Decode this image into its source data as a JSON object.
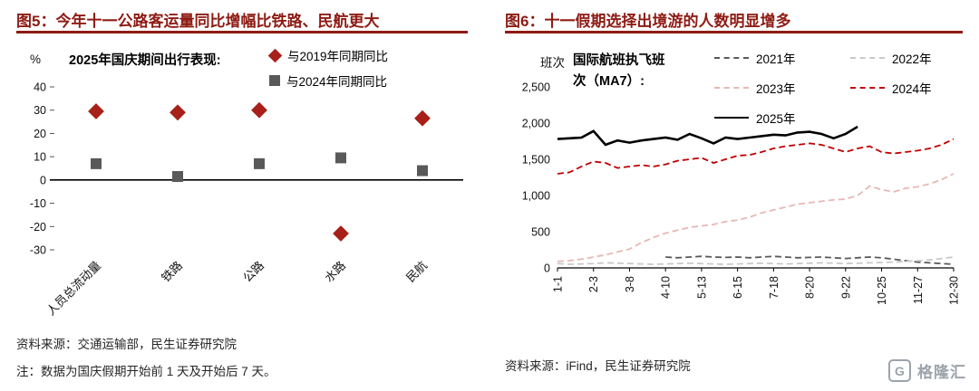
{
  "figure5": {
    "title": "图5：今年十一公路客运量同比增幅比铁路、民航更大",
    "chart_heading": "2025年国庆期间出行表现:",
    "ylabel": "%",
    "source": "资料来源：交通运输部，民生证券研究院",
    "note": "注：数据为国庆假期开始前 1 天及开始后 7 天。"
  },
  "figure6": {
    "title": "图6：十一假期选择出境游的人数明显增多",
    "chart_heading": "国际航班执飞班次（MA7）:",
    "ylabel": "班次",
    "source": "资料来源：iFind，民生证券研究院"
  },
  "accent_color": "#8E1B14",
  "chart_data": [
    {
      "id": "figure5",
      "type": "scatter",
      "title": "2025年国庆期间出行表现:",
      "ylabel": "%",
      "categories": [
        "人员总流动量",
        "铁路",
        "公路",
        "水路",
        "民航"
      ],
      "series": [
        {
          "name": "与2019年同期同比",
          "marker": "diamond",
          "color": "#A8201A",
          "values": [
            29.5,
            29,
            30,
            -23,
            26.5
          ]
        },
        {
          "name": "与2024年同期同比",
          "marker": "square",
          "color": "#595959",
          "values": [
            7,
            1.5,
            7,
            9.5,
            4
          ]
        }
      ],
      "ylim": [
        -30,
        40
      ],
      "yticks": [
        40,
        30,
        20,
        10,
        0,
        -10,
        -20,
        -30
      ],
      "grid": false,
      "legend_position": "top-right"
    },
    {
      "id": "figure6",
      "type": "line",
      "title": "国际航班执飞班次（MA7）:",
      "ylabel": "班次",
      "x_labels": [
        "1-1",
        "2-3",
        "3-8",
        "4-10",
        "5-13",
        "6-15",
        "7-18",
        "8-20",
        "9-22",
        "10-25",
        "11-27",
        "12-30"
      ],
      "ylim": [
        0,
        2500
      ],
      "yticks": [
        0,
        500,
        1000,
        1500,
        2000,
        2500
      ],
      "ytick_labels": [
        "0",
        "500",
        "1,000",
        "1,500",
        "2,000",
        "2,500"
      ],
      "grid": false,
      "legend_position": "top-right",
      "series": [
        {
          "name": "2021年",
          "color": "#595959",
          "line_style": "dashed",
          "values": [
            null,
            null,
            null,
            null,
            null,
            null,
            null,
            null,
            null,
            150,
            140,
            150,
            160,
            150,
            145,
            150,
            140,
            150,
            160,
            150,
            140,
            145,
            150,
            140,
            130,
            140,
            150,
            140,
            120,
            100,
            80,
            70,
            60,
            50
          ]
        },
        {
          "name": "2022年",
          "color": "#C9C9C9",
          "line_style": "dashed",
          "values": [
            60,
            50,
            55,
            60,
            70,
            65,
            60,
            55,
            50,
            55,
            60,
            65,
            60,
            55,
            50,
            55,
            60,
            65,
            60,
            55,
            60,
            65,
            70,
            65,
            60,
            65,
            70,
            75,
            80,
            90,
            100,
            110,
            130,
            150
          ]
        },
        {
          "name": "2023年",
          "color": "#E7B8B3",
          "line_style": "dashed",
          "values": [
            90,
            100,
            120,
            150,
            180,
            220,
            260,
            350,
            420,
            480,
            520,
            560,
            580,
            600,
            640,
            660,
            700,
            760,
            800,
            840,
            880,
            900,
            920,
            940,
            950,
            1000,
            1130,
            1080,
            1050,
            1100,
            1120,
            1160,
            1220,
            1300
          ]
        },
        {
          "name": "2024年",
          "color": "#C00000",
          "line_style": "dashed",
          "values": [
            1300,
            1320,
            1400,
            1470,
            1450,
            1380,
            1400,
            1420,
            1400,
            1430,
            1480,
            1500,
            1520,
            1450,
            1500,
            1550,
            1560,
            1600,
            1650,
            1680,
            1700,
            1720,
            1700,
            1650,
            1600,
            1650,
            1680,
            1600,
            1580,
            1600,
            1620,
            1650,
            1700,
            1780
          ]
        },
        {
          "name": "2025年",
          "color": "#000000",
          "line_style": "solid",
          "values": [
            1780,
            1790,
            1800,
            1890,
            1700,
            1760,
            1730,
            1760,
            1780,
            1800,
            1770,
            1850,
            1790,
            1720,
            1800,
            1780,
            1800,
            1820,
            1840,
            1830,
            1870,
            1880,
            1850,
            1790,
            1850,
            1950,
            null,
            null,
            null,
            null,
            null,
            null,
            null,
            null
          ]
        }
      ]
    }
  ],
  "watermark": {
    "brand": "格隆汇",
    "logo_letter": "G"
  }
}
